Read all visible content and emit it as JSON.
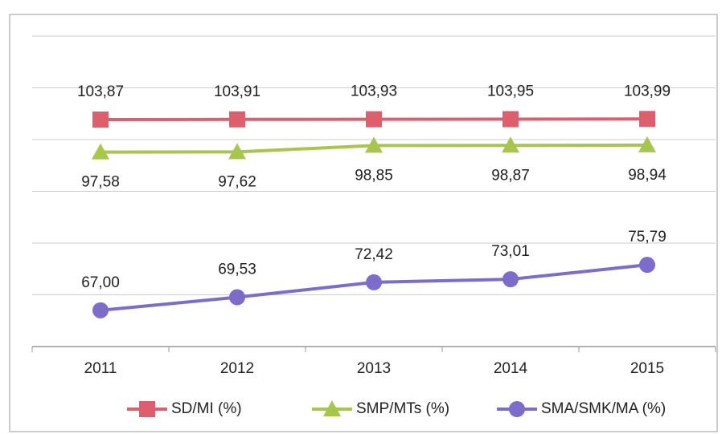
{
  "chart_data": {
    "type": "line",
    "categories": [
      "2011",
      "2012",
      "2013",
      "2014",
      "2015"
    ],
    "series": [
      {
        "name": "SD/MI (%)",
        "color": "#dd5f6e",
        "marker": "square",
        "label_position": "above",
        "values": [
          103.87,
          103.91,
          103.93,
          103.95,
          103.99
        ],
        "value_labels": [
          "103,87",
          "103,91",
          "103,93",
          "103,95",
          "103,99"
        ]
      },
      {
        "name": "SMP/MTs (%)",
        "color": "#a9c64c",
        "marker": "triangle",
        "label_position": "below",
        "values": [
          97.58,
          97.62,
          98.85,
          98.87,
          98.94
        ],
        "value_labels": [
          "97,58",
          "97,62",
          "98,85",
          "98,87",
          "98,94"
        ]
      },
      {
        "name": "SMA/SMK/MA (%)",
        "color": "#7e6ccb",
        "marker": "circle",
        "label_position": "above",
        "values": [
          67.0,
          69.53,
          72.42,
          73.01,
          75.79
        ],
        "value_labels": [
          "67,00",
          "69,53",
          "72,42",
          "73,01",
          "75,79"
        ]
      }
    ],
    "ylim": [
      60,
      120
    ],
    "yticks": [
      60,
      70,
      80,
      90,
      100,
      110,
      120
    ],
    "grid": true,
    "legend": "bottom"
  }
}
